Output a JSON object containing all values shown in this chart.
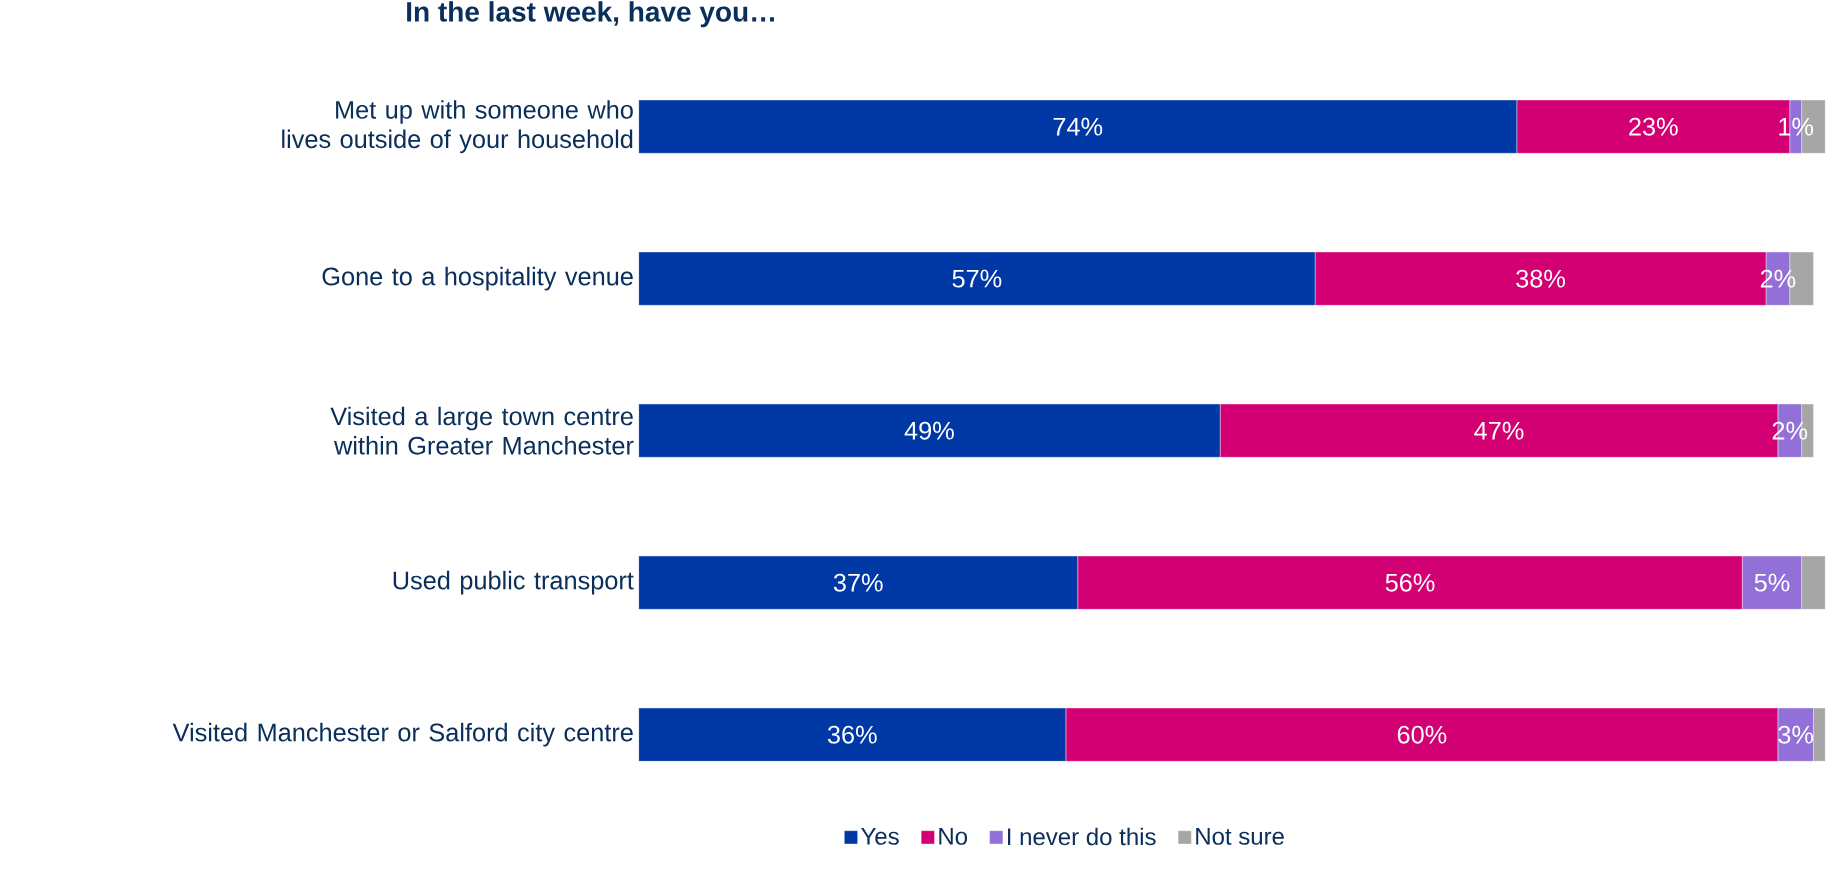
{
  "chart_data": {
    "type": "bar",
    "orientation": "horizontal",
    "stacked": true,
    "title": "In the last week, have you…",
    "categories": [
      "Met up with someone who lives outside of your household",
      "Gone to a hospitality venue",
      "Visited a large town centre within Greater Manchester",
      "Used public transport",
      "Visited Manchester or Salford city centre"
    ],
    "series": [
      {
        "name": "Yes",
        "color": "#0039a6",
        "values": [
          74,
          57,
          49,
          37,
          36
        ],
        "value_labels": [
          "74%",
          "57%",
          "49%",
          "37%",
          "36%"
        ]
      },
      {
        "name": "No",
        "color": "#d20073",
        "values": [
          23,
          38,
          47,
          56,
          60
        ],
        "value_labels": [
          "23%",
          "38%",
          "47%",
          "56%",
          "60%"
        ]
      },
      {
        "name": "I never do this",
        "color": "#9370d8",
        "values": [
          1,
          2,
          2,
          5,
          3
        ],
        "value_labels": [
          "1%",
          "2%",
          "2%",
          "5%",
          "3%"
        ]
      },
      {
        "name": "Not sure",
        "color": "#a6a6a6",
        "values": [
          2,
          2,
          1,
          2,
          1
        ],
        "value_labels": [
          null,
          null,
          null,
          null,
          null
        ]
      }
    ],
    "legend": "bottom"
  }
}
